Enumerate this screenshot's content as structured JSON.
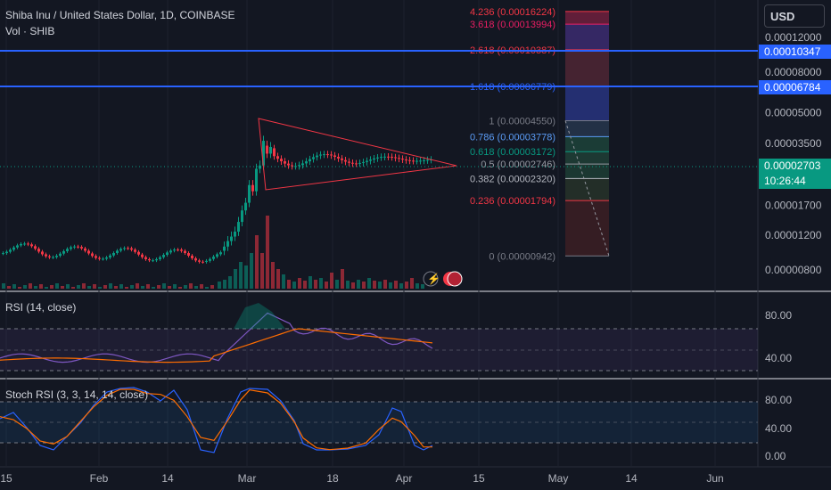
{
  "header": {
    "title": "Shiba Inu / United States Dollar, 1D, COINBASE",
    "volume_label": "Vol · SHIB",
    "currency": "USD"
  },
  "price_axis": {
    "ticks": [
      "0.00012000",
      "0.00008000",
      "0.00005000",
      "0.00003500",
      "0.00001700",
      "0.00001200",
      "0.00000800"
    ],
    "tags": {
      "line_upper": "0.00010347",
      "line_lower": "0.00006784"
    },
    "current_price": "0.00002703",
    "countdown": "10:26:44"
  },
  "time_axis": [
    "15",
    "Feb",
    "14",
    "Mar",
    "18",
    "Apr",
    "15",
    "May",
    "14",
    "Jun"
  ],
  "fib_levels": [
    {
      "ratio": "4.236",
      "price": "0.00016224",
      "label": "4.236 (0.00016224)",
      "color": "#f23645"
    },
    {
      "ratio": "3.618",
      "price": "0.00013994",
      "label": "3.618 (0.00013994)",
      "color": "#e91e63"
    },
    {
      "ratio": "2.618",
      "price": "0.00010387",
      "label": "2.618 (0.00010387)",
      "color": "#f23645"
    },
    {
      "ratio": "1.618",
      "price": "0.00006779",
      "label": "1.618 (0.00006779)",
      "color": "#2962ff"
    },
    {
      "ratio": "1",
      "price": "0.00004550",
      "label": "1 (0.00004550)",
      "color": "#787b86"
    },
    {
      "ratio": "0.786",
      "price": "0.00003778",
      "label": "0.786 (0.00003778)",
      "color": "#5b9cf6"
    },
    {
      "ratio": "0.618",
      "price": "0.00003172",
      "label": "0.618 (0.00003172)",
      "color": "#089981"
    },
    {
      "ratio": "0.5",
      "price": "0.00002746",
      "label": "0.5 (0.00002746)",
      "color": "#9598a1"
    },
    {
      "ratio": "0.382",
      "price": "0.00002320",
      "label": "0.382 (0.00002320)",
      "color": "#b2b5be"
    },
    {
      "ratio": "0.236",
      "price": "0.00001794",
      "label": "0.236 (0.00001794)",
      "color": "#f23645"
    },
    {
      "ratio": "0",
      "price": "0.00000942",
      "label": "0 (0.00000942)",
      "color": "#787b86"
    }
  ],
  "rsi": {
    "label": "RSI (14, close)",
    "ticks": [
      "80.00",
      "40.00"
    ]
  },
  "stoch_rsi": {
    "label": "Stoch RSI (3, 3, 14, 14, close)",
    "ticks": [
      "80.00",
      "40.00",
      "0.00"
    ]
  },
  "colors": {
    "up": "#089981",
    "down": "#f23645",
    "hline": "#2962ff",
    "rsi": "#7e57c2",
    "stoch_k": "#2962ff",
    "stoch_d": "#ff6d00"
  },
  "chart_data": {
    "type": "candlestick",
    "symbol": "SHIB/USD",
    "interval": "1D",
    "price_scale": "log",
    "candles": [
      {
        "x": "Jan 1",
        "o": 9.7e-06,
        "h": 9.9e-06,
        "l": 9.5e-06,
        "c": 9.6e-06
      },
      {
        "x": "Jan 15",
        "o": 9.6e-06,
        "h": 9.8e-06,
        "l": 9.2e-06,
        "c": 9.4e-06
      },
      {
        "x": "Feb 1",
        "o": 9.4e-06,
        "h": 9.6e-06,
        "l": 9.1e-06,
        "c": 9.5e-06
      },
      {
        "x": "Feb 14",
        "o": 9.5e-06,
        "h": 9.8e-06,
        "l": 9.3e-06,
        "c": 9.7e-06
      },
      {
        "x": "Feb 26",
        "o": 1.1e-05,
        "h": 1.3e-05,
        "l": 1.08e-05,
        "c": 1.28e-05
      },
      {
        "x": "Feb 28",
        "o": 1.75e-05,
        "h": 2.3e-05,
        "l": 1.7e-05,
        "c": 2.25e-05
      },
      {
        "x": "Mar 5",
        "o": 3.3e-05,
        "h": 4.5e-05,
        "l": 2.3e-05,
        "c": 3.1e-05
      },
      {
        "x": "Mar 18",
        "o": 2.8e-05,
        "h": 3.2e-05,
        "l": 2.4e-05,
        "c": 2.65e-05
      },
      {
        "x": "Apr 1",
        "o": 3e-05,
        "h": 3.2e-05,
        "l": 2.7e-05,
        "c": 2.85e-05
      },
      {
        "x": "Apr 6",
        "o": 2.7e-05,
        "h": 2.8e-05,
        "l": 2.65e-05,
        "c": 2.7e-05
      }
    ],
    "rsi": [
      42,
      40,
      42,
      47,
      55,
      75,
      85,
      70,
      60,
      55,
      54
    ],
    "stoch_rsi_k": [
      20,
      10,
      85,
      90,
      80,
      10,
      90,
      85,
      8,
      15,
      75,
      10,
      15
    ],
    "stoch_rsi_d": [
      25,
      12,
      80,
      90,
      82,
      15,
      85,
      88,
      10,
      18,
      70,
      12,
      16
    ]
  }
}
